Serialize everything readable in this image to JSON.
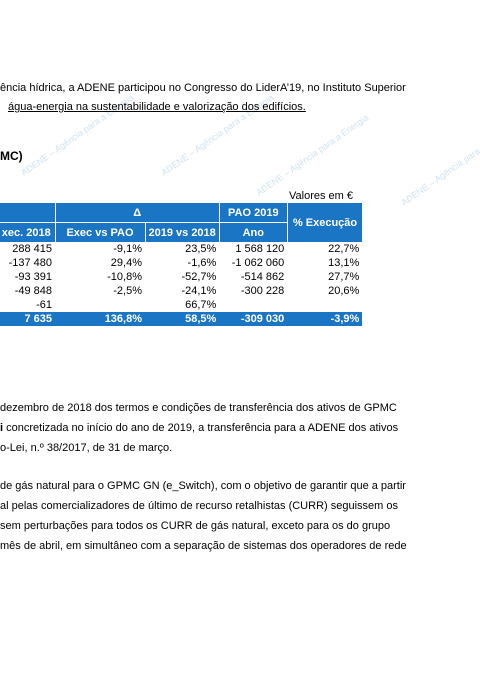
{
  "intro": {
    "line1": "ência hídrica, a ADENE participou no Congresso do LiderA’19, no Instituto Superior",
    "line2": "água-energia na sustentabilidade e valorização dos edifícios."
  },
  "section_title": "MC)",
  "watermark": "ADENE – Agência para a Energia",
  "table": {
    "unit_note": "Valores em €",
    "header1": {
      "delta": "Δ",
      "pao": "PAO 2019",
      "execucao": "% Execução"
    },
    "header2": [
      "xec. 2018",
      "Exec vs PAO",
      "2019 vs 2018",
      "Ano"
    ],
    "rows": [
      [
        "288 415",
        "-9,1%",
        "23,5%",
        "1 568 120",
        "22,7%"
      ],
      [
        "-137 480",
        "29,4%",
        "-1,6%",
        "-1 062 060",
        "13,1%"
      ],
      [
        "-93 391",
        "-10,8%",
        "-52,7%",
        "-514 862",
        "27,7%"
      ],
      [
        "-49 848",
        "-2,5%",
        "-24,1%",
        "-300 228",
        "20,6%"
      ],
      [
        "-61",
        null,
        "66,7%",
        null,
        null
      ]
    ],
    "total": [
      "7 635",
      "136,8%",
      "58,5%",
      "-309 030",
      "-3,9%"
    ]
  },
  "paragraph1": {
    "line1": "dezembro de 2018 dos termos e condições de transferência dos ativos de GPMC",
    "line2_bold": "i",
    "line2": " concretizada no início do ano de 2019, a transferência para a ADENE dos ativos",
    "line3": "o-Lei, n.º 38/2017, de 31 de março."
  },
  "paragraph2": [
    "de gás natural para o GPMC GN (e_Switch), com o objetivo de garantir que a partir",
    "al pelas comercializadores de último de recurso retalhistas (CURR) seguissem os",
    "sem perturbações para todos os CURR de gás natural, exceto para os do grupo",
    "mês de abril, em simultâneo com a separação de sistemas dos operadores de rede"
  ]
}
